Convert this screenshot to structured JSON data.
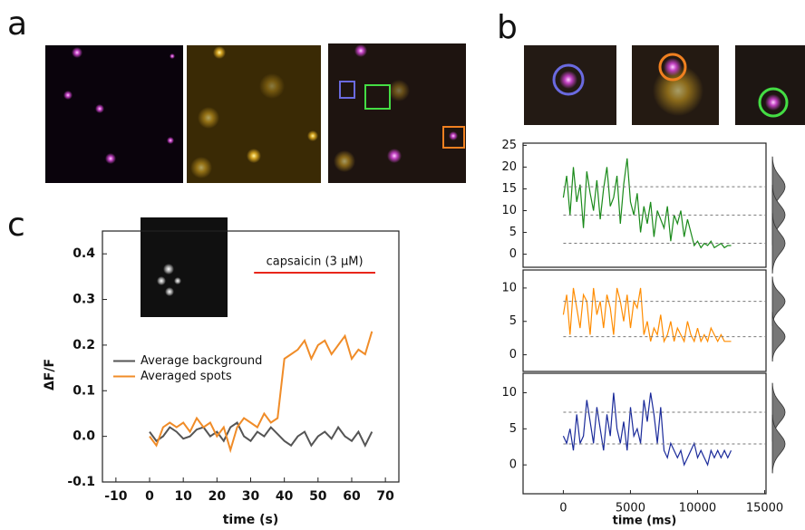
{
  "panel_labels": [
    "a",
    "b",
    "c"
  ],
  "chart_data": [
    {
      "type": "line",
      "xlabel": "time (s)",
      "ylabel": "ΔF/F",
      "x": [
        0,
        2,
        4,
        6,
        8,
        10,
        12,
        14,
        16,
        18,
        20,
        22,
        24,
        26,
        28,
        30,
        32,
        34,
        36,
        38,
        40,
        42,
        44,
        46,
        48,
        50,
        52,
        54,
        56,
        58,
        60,
        62,
        64,
        66
      ],
      "series": [
        {
          "name": "Average background",
          "color": "#555555",
          "values": [
            0.01,
            -0.01,
            0.0,
            0.02,
            0.01,
            -0.005,
            0.0,
            0.015,
            0.02,
            0.0,
            0.01,
            -0.01,
            0.02,
            0.03,
            0.0,
            -0.01,
            0.01,
            0.0,
            0.02,
            0.005,
            -0.01,
            -0.02,
            0.0,
            0.01,
            -0.02,
            0.0,
            0.01,
            -0.005,
            0.02,
            0.0,
            -0.01,
            0.01,
            -0.02,
            0.01
          ]
        },
        {
          "name": "Averaged spots",
          "color": "#f08c28",
          "values": [
            0.0,
            -0.02,
            0.02,
            0.03,
            0.02,
            0.03,
            0.01,
            0.04,
            0.02,
            0.03,
            0.0,
            0.02,
            -0.03,
            0.02,
            0.04,
            0.03,
            0.02,
            0.05,
            0.03,
            0.04,
            0.17,
            0.18,
            0.19,
            0.21,
            0.17,
            0.2,
            0.21,
            0.18,
            0.2,
            0.22,
            0.17,
            0.19,
            0.18,
            0.23
          ]
        }
      ],
      "xlim": [
        -14,
        74
      ],
      "xticks": [
        -10,
        0,
        10,
        20,
        30,
        40,
        50,
        60,
        70
      ],
      "ylim": [
        -0.1,
        0.45
      ],
      "yticks": [
        {
          "value": -0.1,
          "label": "-0.1"
        },
        {
          "value": 0,
          "label": "0.0"
        },
        {
          "value": 0.1,
          "label": "0.1"
        },
        {
          "value": 0.2,
          "label": "0.2"
        },
        {
          "value": 0.3,
          "label": "0.3"
        },
        {
          "value": 0.4,
          "label": "0.4"
        }
      ],
      "legend": "center left",
      "annotation": {
        "text": "capsaicin (3 μM)",
        "x_range": [
          31,
          67
        ],
        "color": "#e8261a"
      }
    },
    {
      "type": "trace",
      "color": "#1a8a1a",
      "x": [
        0,
        250,
        500,
        750,
        1000,
        1250,
        1500,
        1750,
        2000,
        2250,
        2500,
        2750,
        3000,
        3250,
        3500,
        3750,
        4000,
        4250,
        4500,
        4750,
        5000,
        5250,
        5500,
        5750,
        6000,
        6250,
        6500,
        6750,
        7000,
        7250,
        7500,
        7750,
        8000,
        8250,
        8500,
        8750,
        9000,
        9250,
        9500,
        9750,
        10000,
        10250,
        10500,
        10750,
        11000,
        11250,
        11500,
        11750,
        12000,
        12250,
        12500
      ],
      "values": [
        13,
        18,
        9,
        20,
        12,
        16,
        6,
        19,
        14,
        10,
        17,
        8,
        15,
        20,
        11,
        13,
        18,
        7,
        16,
        22,
        12,
        9,
        14,
        5,
        11,
        7,
        12,
        4,
        10,
        8,
        6,
        11,
        3,
        9,
        7,
        10,
        4,
        8,
        5,
        2,
        3,
        1.5,
        2.5,
        2,
        3,
        1.5,
        2,
        2.5,
        1.5,
        2,
        2
      ],
      "levels": [
        15.5,
        9,
        2.5
      ],
      "xlim": [
        -3000,
        15100
      ],
      "ylim": [
        -3,
        25.5
      ],
      "yticks": [
        0,
        5,
        10,
        15,
        20,
        25
      ]
    },
    {
      "type": "trace",
      "color": "#ff8c00",
      "x": [
        0,
        250,
        500,
        750,
        1000,
        1250,
        1500,
        1750,
        2000,
        2250,
        2500,
        2750,
        3000,
        3250,
        3500,
        3750,
        4000,
        4250,
        4500,
        4750,
        5000,
        5250,
        5500,
        5750,
        6000,
        6250,
        6500,
        6750,
        7000,
        7250,
        7500,
        7750,
        8000,
        8250,
        8500,
        8750,
        9000,
        9250,
        9500,
        9750,
        10000,
        10250,
        10500,
        10750,
        11000,
        11250,
        11500,
        11750,
        12000,
        12250,
        12500
      ],
      "values": [
        6,
        9,
        3,
        10,
        7,
        4,
        9,
        8,
        3,
        10,
        6,
        8,
        4,
        9,
        7,
        3,
        10,
        8,
        5,
        9,
        4,
        8,
        7,
        10,
        3,
        5,
        2,
        4,
        3,
        6,
        2,
        3,
        5,
        2,
        4,
        3,
        2,
        5,
        3,
        2,
        4,
        2,
        3,
        2,
        4,
        3,
        2,
        3,
        2,
        2,
        2
      ],
      "levels": [
        8,
        2.7
      ],
      "xlim": [
        -3000,
        15100
      ],
      "ylim": [
        -2.5,
        12.7
      ],
      "yticks": [
        0,
        5,
        10
      ]
    },
    {
      "type": "trace",
      "color": "#1a2a9a",
      "xlabel": "time (ms)",
      "x": [
        0,
        250,
        500,
        750,
        1000,
        1250,
        1500,
        1750,
        2000,
        2250,
        2500,
        2750,
        3000,
        3250,
        3500,
        3750,
        4000,
        4250,
        4500,
        4750,
        5000,
        5250,
        5500,
        5750,
        6000,
        6250,
        6500,
        6750,
        7000,
        7250,
        7500,
        7750,
        8000,
        8250,
        8500,
        8750,
        9000,
        9250,
        9500,
        9750,
        10000,
        10250,
        10500,
        10750,
        11000,
        11250,
        11500,
        11750,
        12000,
        12250,
        12500
      ],
      "values": [
        4,
        3,
        5,
        2,
        7,
        3,
        4,
        9,
        6,
        3,
        8,
        5,
        2,
        7,
        4,
        10,
        5,
        3,
        6,
        2,
        8,
        4,
        5,
        3,
        9,
        6,
        10,
        7,
        3,
        8,
        2,
        1,
        3,
        2,
        1,
        2,
        0,
        1,
        2,
        3,
        1,
        2,
        1,
        0,
        2,
        1,
        2,
        1,
        2,
        1,
        2
      ],
      "levels": [
        7.3,
        2.9
      ],
      "xlim": [
        -3000,
        15100
      ],
      "ylim": [
        -4,
        12.7
      ],
      "yticks": [
        0,
        5,
        10
      ],
      "xticks": [
        0,
        5000,
        10000,
        15000
      ]
    }
  ]
}
